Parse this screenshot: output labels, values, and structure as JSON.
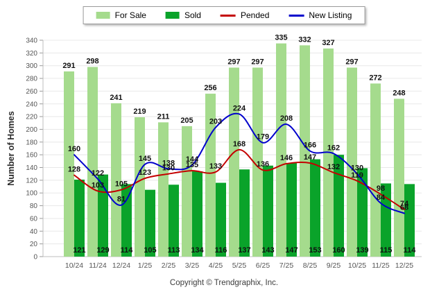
{
  "footer": {
    "copyright": "Copyright © Trendgraphix, Inc."
  },
  "colors": {
    "for_sale": "#A5DB8D",
    "sold": "#0AA32A",
    "pended": "#C40000",
    "new_listing": "#0000CC",
    "grid": "#E8E8E8",
    "axis": "#BDBDBD",
    "tick_text": "#555555",
    "label_text": "#111111"
  },
  "chart_data": {
    "type": "bar+line",
    "title": "",
    "xlabel": "",
    "ylabel": "Number of Homes",
    "ylim": [
      0,
      340
    ],
    "y_step": 20,
    "grid": true,
    "legend_position": "top-center",
    "categories": [
      "10/24",
      "11/24",
      "12/24",
      "1/25",
      "2/25",
      "3/25",
      "4/25",
      "5/25",
      "6/25",
      "7/25",
      "8/25",
      "9/25",
      "10/25",
      "11/25",
      "12/25"
    ],
    "series": [
      {
        "name": "For Sale",
        "type": "bar",
        "color": "#A5DB8D",
        "values": [
          291,
          298,
          241,
          219,
          211,
          205,
          256,
          297,
          297,
          335,
          332,
          327,
          297,
          272,
          248
        ]
      },
      {
        "name": "Sold",
        "type": "bar",
        "color": "#0AA32A",
        "values": [
          121,
          129,
          114,
          105,
          113,
          134,
          116,
          137,
          143,
          147,
          153,
          160,
          139,
          115,
          114
        ]
      },
      {
        "name": "Pended",
        "type": "line",
        "color": "#C40000",
        "values": [
          128,
          103,
          105,
          123,
          130,
          135,
          133,
          168,
          136,
          146,
          147,
          132,
          119,
          98,
          74
        ]
      },
      {
        "name": "New Listing",
        "type": "line",
        "color": "#0000CC",
        "values": [
          160,
          122,
          81,
          145,
          138,
          144,
          203,
          224,
          179,
          208,
          166,
          162,
          130,
          84,
          68
        ]
      }
    ]
  }
}
